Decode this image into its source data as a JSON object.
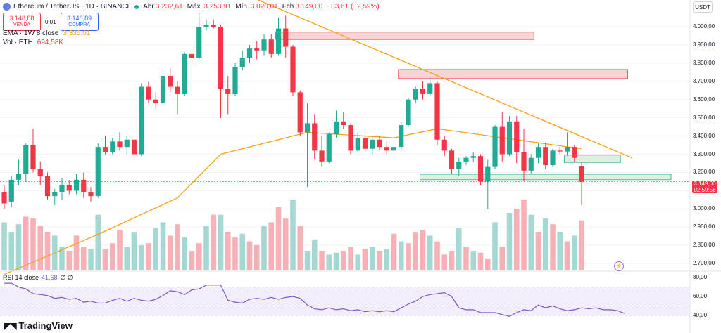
{
  "header": {
    "symbol_title": "Ethereum / TetherUS · 1D · BINANCE",
    "ohlc": [
      {
        "label": "Abr",
        "value": "3.232,61"
      },
      {
        "label": "Máx.",
        "value": "3.253,91"
      },
      {
        "label": "Mín.",
        "value": "3.020,01"
      },
      {
        "label": "Fch",
        "value": "3.149,00"
      }
    ],
    "change": "−83,61 (−2,59%)",
    "sell_price": "3.148,88",
    "sell_label": "VENDA",
    "spread": "0,01",
    "buy_price": "3.148,89",
    "buy_label": "COMPRA",
    "ema_label": "EMA · 1W 8 close",
    "ema_value": "3.335,01",
    "vol_label": "Vol · ETH",
    "vol_value": "694,58K",
    "currency": "USDT"
  },
  "rsi": {
    "label": "RSI 14 close",
    "value": "41,68",
    "extra": "∅ ∅"
  },
  "branding": {
    "logo_text": "TradingView"
  },
  "colors": {
    "up": "#22ab94",
    "down": "#f23645",
    "ema": "#f7a21b",
    "rsi": "#7e57c2",
    "resistance_zone": "#f8c9cd",
    "support_zone": "#d4ecd5"
  },
  "chart_data": [
    {
      "type": "candlestick",
      "title": "Ethereum / TetherUS · 1D · BINANCE",
      "ylim": [
        2650,
        4150
      ],
      "y_ticks": [
        "4.000,00",
        "3.900,00",
        "3.800,00",
        "3.700,00",
        "3.600,00",
        "3.500,00",
        "3.400,00",
        "3.300,00",
        "3.200,00",
        "3.100,00",
        "3.000,00",
        "2.900,00",
        "2.800,00",
        "2.700,00"
      ],
      "last_price": "3.149,00",
      "countdown": "02:59:56",
      "candles": [
        {
          "o": 3090,
          "h": 3130,
          "l": 3000,
          "c": 3030
        },
        {
          "o": 3040,
          "h": 3180,
          "l": 3010,
          "c": 3160
        },
        {
          "o": 3160,
          "h": 3270,
          "l": 3130,
          "c": 3190
        },
        {
          "o": 3190,
          "h": 3360,
          "l": 3150,
          "c": 3350
        },
        {
          "o": 3350,
          "h": 3440,
          "l": 3200,
          "c": 3220
        },
        {
          "o": 3220,
          "h": 3260,
          "l": 3130,
          "c": 3180
        },
        {
          "o": 3180,
          "h": 3200,
          "l": 3050,
          "c": 3070
        },
        {
          "o": 3070,
          "h": 3110,
          "l": 3020,
          "c": 3090
        },
        {
          "o": 3090,
          "h": 3170,
          "l": 3050,
          "c": 3130
        },
        {
          "o": 3130,
          "h": 3160,
          "l": 3080,
          "c": 3100
        },
        {
          "o": 3100,
          "h": 3190,
          "l": 3080,
          "c": 3160
        },
        {
          "o": 3160,
          "h": 3200,
          "l": 3060,
          "c": 3090
        },
        {
          "o": 3090,
          "h": 3120,
          "l": 3040,
          "c": 3070
        },
        {
          "o": 3070,
          "h": 3360,
          "l": 3060,
          "c": 3340
        },
        {
          "o": 3340,
          "h": 3400,
          "l": 3300,
          "c": 3310
        },
        {
          "o": 3310,
          "h": 3390,
          "l": 3300,
          "c": 3370
        },
        {
          "o": 3370,
          "h": 3420,
          "l": 3320,
          "c": 3340
        },
        {
          "o": 3340,
          "h": 3400,
          "l": 3300,
          "c": 3380
        },
        {
          "o": 3380,
          "h": 3400,
          "l": 3280,
          "c": 3300
        },
        {
          "o": 3300,
          "h": 3690,
          "l": 3290,
          "c": 3670
        },
        {
          "o": 3670,
          "h": 3700,
          "l": 3580,
          "c": 3600
        },
        {
          "o": 3600,
          "h": 3640,
          "l": 3550,
          "c": 3580
        },
        {
          "o": 3580,
          "h": 3760,
          "l": 3570,
          "c": 3730
        },
        {
          "o": 3730,
          "h": 3770,
          "l": 3640,
          "c": 3670
        },
        {
          "o": 3670,
          "h": 3700,
          "l": 3520,
          "c": 3630
        },
        {
          "o": 3630,
          "h": 3860,
          "l": 3620,
          "c": 3850
        },
        {
          "o": 3850,
          "h": 3880,
          "l": 3800,
          "c": 3830
        },
        {
          "o": 3830,
          "h": 4080,
          "l": 3820,
          "c": 4000
        },
        {
          "o": 4000,
          "h": 4040,
          "l": 3980,
          "c": 4010
        },
        {
          "o": 4010,
          "h": 4040,
          "l": 3990,
          "c": 4000
        },
        {
          "o": 4000,
          "h": 4010,
          "l": 3500,
          "c": 3660
        },
        {
          "o": 3660,
          "h": 3730,
          "l": 3520,
          "c": 3630
        },
        {
          "o": 3630,
          "h": 3800,
          "l": 3620,
          "c": 3780
        },
        {
          "o": 3780,
          "h": 3870,
          "l": 3760,
          "c": 3830
        },
        {
          "o": 3830,
          "h": 3900,
          "l": 3800,
          "c": 3880
        },
        {
          "o": 3880,
          "h": 3920,
          "l": 3820,
          "c": 3870
        },
        {
          "o": 3870,
          "h": 3960,
          "l": 3840,
          "c": 3930
        },
        {
          "o": 3930,
          "h": 3960,
          "l": 3830,
          "c": 3850
        },
        {
          "o": 3850,
          "h": 4050,
          "l": 3840,
          "c": 3990
        },
        {
          "o": 3990,
          "h": 4060,
          "l": 3830,
          "c": 3890
        },
        {
          "o": 3890,
          "h": 3900,
          "l": 3620,
          "c": 3640
        },
        {
          "o": 3640,
          "h": 3650,
          "l": 3400,
          "c": 3420
        },
        {
          "o": 3420,
          "h": 3580,
          "l": 3120,
          "c": 3470
        },
        {
          "o": 3470,
          "h": 3520,
          "l": 3270,
          "c": 3320
        },
        {
          "o": 3320,
          "h": 3400,
          "l": 3230,
          "c": 3260
        },
        {
          "o": 3260,
          "h": 3420,
          "l": 3250,
          "c": 3410
        },
        {
          "o": 3410,
          "h": 3540,
          "l": 3390,
          "c": 3480
        },
        {
          "o": 3480,
          "h": 3530,
          "l": 3440,
          "c": 3460
        },
        {
          "o": 3460,
          "h": 3470,
          "l": 3300,
          "c": 3320
        },
        {
          "o": 3320,
          "h": 3420,
          "l": 3310,
          "c": 3390
        },
        {
          "o": 3390,
          "h": 3410,
          "l": 3310,
          "c": 3330
        },
        {
          "o": 3330,
          "h": 3400,
          "l": 3300,
          "c": 3380
        },
        {
          "o": 3380,
          "h": 3400,
          "l": 3320,
          "c": 3340
        },
        {
          "o": 3340,
          "h": 3370,
          "l": 3300,
          "c": 3320
        },
        {
          "o": 3320,
          "h": 3360,
          "l": 3300,
          "c": 3340
        },
        {
          "o": 3340,
          "h": 3480,
          "l": 3320,
          "c": 3460
        },
        {
          "o": 3460,
          "h": 3610,
          "l": 3450,
          "c": 3600
        },
        {
          "o": 3600,
          "h": 3670,
          "l": 3580,
          "c": 3660
        },
        {
          "o": 3660,
          "h": 3700,
          "l": 3600,
          "c": 3630
        },
        {
          "o": 3630,
          "h": 3720,
          "l": 3620,
          "c": 3690
        },
        {
          "o": 3690,
          "h": 3700,
          "l": 3350,
          "c": 3380
        },
        {
          "o": 3380,
          "h": 3400,
          "l": 3290,
          "c": 3320
        },
        {
          "o": 3320,
          "h": 3330,
          "l": 3190,
          "c": 3220
        },
        {
          "o": 3220,
          "h": 3280,
          "l": 3180,
          "c": 3260
        },
        {
          "o": 3260,
          "h": 3290,
          "l": 3240,
          "c": 3280
        },
        {
          "o": 3280,
          "h": 3310,
          "l": 3260,
          "c": 3290
        },
        {
          "o": 3290,
          "h": 3300,
          "l": 3130,
          "c": 3150
        },
        {
          "o": 3150,
          "h": 3270,
          "l": 3000,
          "c": 3230
        },
        {
          "o": 3230,
          "h": 3460,
          "l": 3220,
          "c": 3450
        },
        {
          "o": 3450,
          "h": 3530,
          "l": 3260,
          "c": 3300
        },
        {
          "o": 3300,
          "h": 3510,
          "l": 3290,
          "c": 3480
        },
        {
          "o": 3480,
          "h": 3510,
          "l": 3250,
          "c": 3310
        },
        {
          "o": 3310,
          "h": 3440,
          "l": 3150,
          "c": 3210
        },
        {
          "o": 3210,
          "h": 3300,
          "l": 3190,
          "c": 3280
        },
        {
          "o": 3280,
          "h": 3360,
          "l": 3250,
          "c": 3340
        },
        {
          "o": 3340,
          "h": 3360,
          "l": 3220,
          "c": 3240
        },
        {
          "o": 3240,
          "h": 3330,
          "l": 3230,
          "c": 3320
        },
        {
          "o": 3320,
          "h": 3340,
          "l": 3300,
          "c": 3315
        },
        {
          "o": 3315,
          "h": 3420,
          "l": 3290,
          "c": 3340
        },
        {
          "o": 3340,
          "h": 3350,
          "l": 3260,
          "c": 3280
        },
        {
          "o": 3233,
          "h": 3254,
          "l": 3020,
          "c": 3149
        }
      ],
      "volume": [
        {
          "v": 250,
          "up": true
        },
        {
          "v": 200,
          "up": true
        },
        {
          "v": 240,
          "up": true
        },
        {
          "v": 280,
          "up": false
        },
        {
          "v": 270,
          "up": false
        },
        {
          "v": 230,
          "up": false
        },
        {
          "v": 200,
          "up": false
        },
        {
          "v": 180,
          "up": true
        },
        {
          "v": 120,
          "up": true
        },
        {
          "v": 100,
          "up": false
        },
        {
          "v": 180,
          "up": false
        },
        {
          "v": 120,
          "up": false
        },
        {
          "v": 110,
          "up": true
        },
        {
          "v": 290,
          "up": true
        },
        {
          "v": 110,
          "up": false
        },
        {
          "v": 140,
          "up": false
        },
        {
          "v": 210,
          "up": false
        },
        {
          "v": 120,
          "up": true
        },
        {
          "v": 200,
          "up": true
        },
        {
          "v": 130,
          "up": true
        },
        {
          "v": 140,
          "up": false
        },
        {
          "v": 220,
          "up": true
        },
        {
          "v": 250,
          "up": true
        },
        {
          "v": 180,
          "up": false
        },
        {
          "v": 240,
          "up": false
        },
        {
          "v": 170,
          "up": true
        },
        {
          "v": 100,
          "up": false
        },
        {
          "v": 140,
          "up": false
        },
        {
          "v": 230,
          "up": true
        },
        {
          "v": 290,
          "up": false
        },
        {
          "v": 290,
          "up": true
        },
        {
          "v": 200,
          "up": false
        },
        {
          "v": 170,
          "up": false
        },
        {
          "v": 190,
          "up": true
        },
        {
          "v": 150,
          "up": false
        },
        {
          "v": 130,
          "up": false
        },
        {
          "v": 230,
          "up": true
        },
        {
          "v": 250,
          "up": false
        },
        {
          "v": 330,
          "up": false
        },
        {
          "v": 270,
          "up": false
        },
        {
          "v": 370,
          "up": true
        },
        {
          "v": 230,
          "up": false
        },
        {
          "v": 100,
          "up": true
        },
        {
          "v": 160,
          "up": true
        },
        {
          "v": 100,
          "up": false
        },
        {
          "v": 80,
          "up": true
        },
        {
          "v": 90,
          "up": true
        },
        {
          "v": 100,
          "up": false
        },
        {
          "v": 120,
          "up": false
        },
        {
          "v": 80,
          "up": true
        },
        {
          "v": 110,
          "up": false
        },
        {
          "v": 120,
          "up": true
        },
        {
          "v": 100,
          "up": false
        },
        {
          "v": 110,
          "up": true
        },
        {
          "v": 190,
          "up": false
        },
        {
          "v": 150,
          "up": true
        },
        {
          "v": 140,
          "up": false
        },
        {
          "v": 200,
          "up": false
        },
        {
          "v": 210,
          "up": false
        },
        {
          "v": 180,
          "up": true
        },
        {
          "v": 150,
          "up": false
        },
        {
          "v": 80,
          "up": false
        },
        {
          "v": 100,
          "up": false
        },
        {
          "v": 220,
          "up": true
        },
        {
          "v": 120,
          "up": false
        },
        {
          "v": 100,
          "up": true
        },
        {
          "v": 90,
          "up": false
        },
        {
          "v": 60,
          "up": false
        },
        {
          "v": 250,
          "up": true
        },
        {
          "v": 120,
          "up": false
        },
        {
          "v": 300,
          "up": true
        },
        {
          "v": 320,
          "up": false
        },
        {
          "v": 370,
          "up": false
        },
        {
          "v": 290,
          "up": true
        },
        {
          "v": 200,
          "up": false
        },
        {
          "v": 270,
          "up": true
        },
        {
          "v": 240,
          "up": false
        },
        {
          "v": 200,
          "up": true
        },
        {
          "v": 150,
          "up": false
        },
        {
          "v": 180,
          "up": true
        },
        {
          "v": 260,
          "up": false
        }
      ],
      "ema": [
        {
          "i": 0,
          "v": 2640
        },
        {
          "i": 13,
          "v": 2860
        },
        {
          "i": 24,
          "v": 3060
        },
        {
          "i": 30,
          "v": 3300
        },
        {
          "i": 42,
          "v": 3420
        },
        {
          "i": 54,
          "v": 3390
        },
        {
          "i": 60,
          "v": 3440
        },
        {
          "i": 80,
          "v": 3330
        }
      ],
      "trendline": [
        {
          "i": 35,
          "v": 4150
        },
        {
          "i": 87,
          "v": 3280
        }
      ],
      "zones": [
        {
          "kind": "resistance",
          "i0": 38,
          "i1": 73,
          "y0": 3930,
          "y1": 3970
        },
        {
          "kind": "resistance",
          "i0": 55,
          "i1": 86,
          "y0": 3715,
          "y1": 3765
        },
        {
          "kind": "support",
          "i0": 78,
          "i1": 85,
          "y0": 3255,
          "y1": 3295
        },
        {
          "kind": "support",
          "i0": 58,
          "i1": 92,
          "y0": 3160,
          "y1": 3190
        }
      ]
    },
    {
      "type": "line",
      "title": "RSI 14 close",
      "ylim": [
        33,
        82
      ],
      "y_ticks": [
        "80,00",
        "60,00",
        "40,00"
      ],
      "band": [
        40,
        70
      ],
      "values": [
        74,
        74,
        70,
        68,
        63,
        62,
        61,
        58,
        59,
        57,
        58,
        54,
        55,
        53,
        53,
        56,
        58,
        55,
        58,
        56,
        55,
        57,
        61,
        66,
        65,
        62,
        67,
        68,
        72,
        72,
        72,
        56,
        54,
        53,
        57,
        58,
        57,
        59,
        57,
        59,
        60,
        58,
        51,
        47,
        46,
        48,
        46,
        47,
        45,
        46,
        44,
        45,
        44,
        45,
        44,
        48,
        52,
        55,
        60,
        62,
        63,
        64,
        60,
        48,
        46,
        46,
        43,
        43,
        43,
        41,
        39,
        43,
        46,
        45,
        51,
        48,
        50,
        47,
        45,
        46,
        48,
        47,
        48,
        46,
        46,
        45,
        42
      ]
    }
  ]
}
